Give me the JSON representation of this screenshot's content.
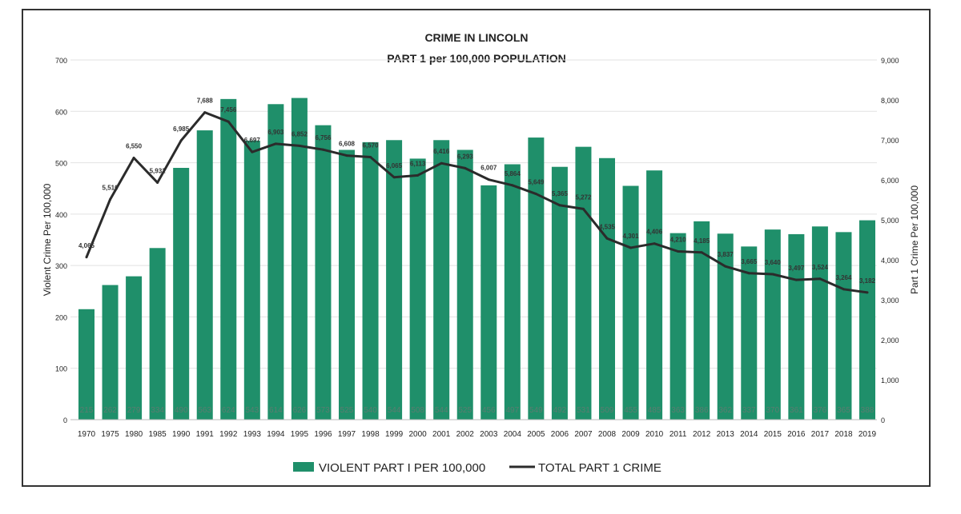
{
  "chart_data": {
    "type": "bar+line",
    "title": "CRIME IN LINCOLN",
    "subtitle": "PART 1 per 100,000 POPULATION",
    "ylabel": "Violent Crime Per 100,000",
    "y2label": "Part 1 Crime Per 100,000",
    "ylim": [
      0,
      700
    ],
    "y2lim": [
      0,
      9000
    ],
    "yticks": [
      "0",
      "100",
      "200",
      "300",
      "400",
      "500",
      "600",
      "700"
    ],
    "y2ticks": [
      "0",
      "1,000",
      "2,000",
      "3,000",
      "4,000",
      "5,000",
      "6,000",
      "7,000",
      "8,000",
      "9,000"
    ],
    "grid": true,
    "legend_position": "bottom",
    "categories": [
      "1970",
      "1975",
      "1980",
      "1985",
      "1990",
      "1991",
      "1992",
      "1993",
      "1994",
      "1995",
      "1996",
      "1997",
      "1998",
      "1999",
      "2000",
      "2001",
      "2002",
      "2003",
      "2004",
      "2005",
      "2006",
      "2007",
      "2008",
      "2009",
      "2010",
      "2011",
      "2012",
      "2013",
      "2014",
      "2015",
      "2016",
      "2017",
      "2018",
      "2019"
    ],
    "series": [
      {
        "name": "VIOLENT PART I PER 100,000",
        "type": "bar",
        "axis": "left",
        "color": "#1f8f6a",
        "values": [
          215,
          262,
          279,
          334,
          490,
          563,
          624,
          543,
          614,
          626,
          573,
          525,
          540,
          544,
          508,
          544,
          525,
          456,
          497,
          549,
          492,
          531,
          509,
          455,
          485,
          363,
          386,
          362,
          337,
          370,
          361,
          376,
          365,
          388
        ]
      },
      {
        "name": "TOTAL PART 1 CRIME",
        "type": "line",
        "axis": "right",
        "color": "#2b2b2b",
        "values": [
          4065,
          5510,
          6550,
          5931,
          6985,
          7688,
          7456,
          6697,
          6903,
          6852,
          6756,
          6608,
          6570,
          6065,
          6113,
          6416,
          6293,
          6007,
          5864,
          5649,
          5365,
          5272,
          4535,
          4301,
          4406,
          4210,
          4185,
          3837,
          3665,
          3640,
          3497,
          3524,
          3264,
          3182
        ]
      }
    ]
  }
}
